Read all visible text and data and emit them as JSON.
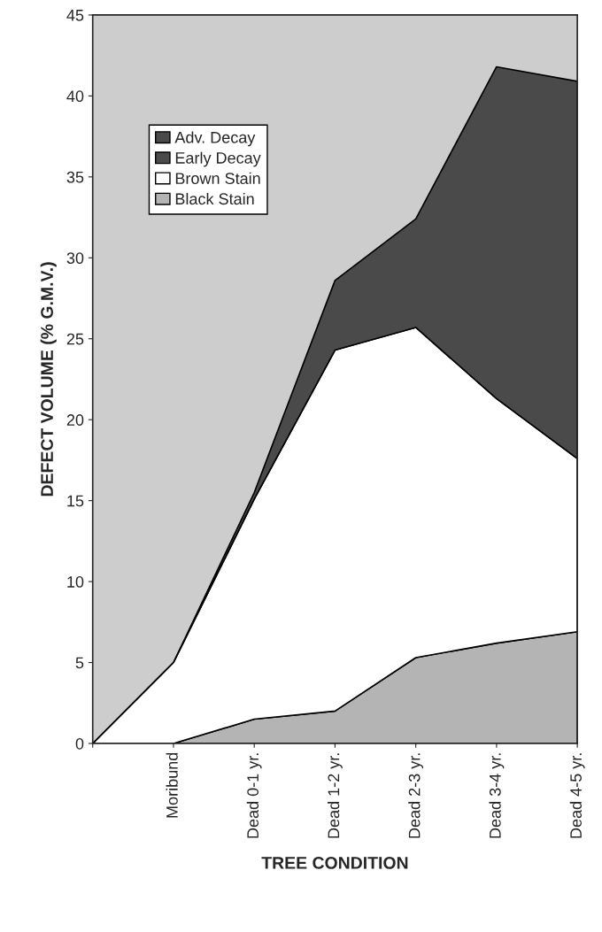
{
  "chart_data": {
    "type": "area",
    "stacked": true,
    "categories": [
      null,
      "Moribund",
      "Dead 0-1 yr.",
      "Dead 1-2 yr.",
      "Dead 2-3 yr.",
      "Dead 3-4 yr.",
      "Dead 4-5 yr."
    ],
    "series": [
      {
        "name": "Black Stain",
        "color": "#b4b4b4",
        "values": [
          0,
          0,
          1.5,
          2.0,
          5.3,
          6.2,
          6.9
        ]
      },
      {
        "name": "Brown Stain",
        "color": "#ffffff",
        "values": [
          0,
          5,
          13.6,
          22.3,
          20.4,
          15.1,
          10.7
        ]
      },
      {
        "name": "Early Decay",
        "color": "#4a4a4a",
        "values": [
          0,
          0,
          0.4,
          4.3,
          6.7,
          20.5,
          23.3
        ]
      },
      {
        "name": "Adv. Decay",
        "color": "#4a4a4a",
        "values": [
          null,
          null,
          null,
          null,
          null,
          null,
          null
        ]
      }
    ],
    "xlabel": "TREE CONDITION",
    "ylabel": "DEFECT VOLUME (% G.M.V.)",
    "ylim": [
      0,
      45
    ],
    "yticks": [
      0,
      5,
      10,
      15,
      20,
      25,
      30,
      35,
      40,
      45
    ],
    "legend": "top left"
  }
}
